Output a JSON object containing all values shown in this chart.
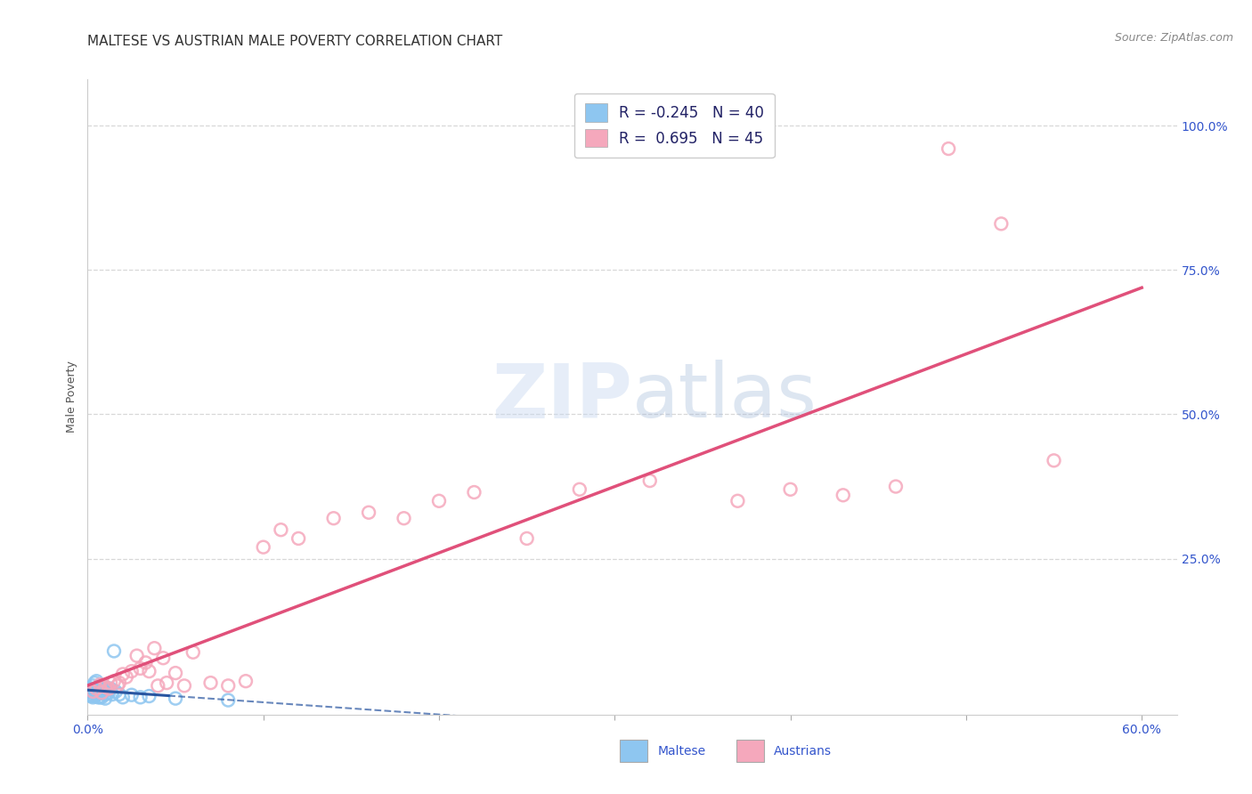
{
  "title": "MALTESE VS AUSTRIAN MALE POVERTY CORRELATION CHART",
  "source": "Source: ZipAtlas.com",
  "ylabel": "Male Poverty",
  "xlim": [
    0.0,
    0.62
  ],
  "ylim": [
    -0.02,
    1.08
  ],
  "xtick_positions": [
    0.0,
    0.1,
    0.2,
    0.3,
    0.4,
    0.5,
    0.6
  ],
  "xtick_labels": [
    "0.0%",
    "",
    "",
    "",
    "",
    "",
    "60.0%"
  ],
  "ytick_right_positions": [
    0.25,
    0.5,
    0.75,
    1.0
  ],
  "ytick_right_labels": [
    "25.0%",
    "50.0%",
    "75.0%",
    "100.0%"
  ],
  "maltese_color": "#8ec6f0",
  "austrian_color": "#f5a8bc",
  "maltese_line_color": "#2855a0",
  "austrian_line_color": "#e0507a",
  "legend_R_maltese": "-0.245",
  "legend_N_maltese": "40",
  "legend_R_austrian": " 0.695",
  "legend_N_austrian": "45",
  "maltese_x": [
    0.001,
    0.001,
    0.002,
    0.002,
    0.003,
    0.003,
    0.003,
    0.004,
    0.004,
    0.004,
    0.005,
    0.005,
    0.005,
    0.006,
    0.006,
    0.006,
    0.007,
    0.007,
    0.007,
    0.008,
    0.008,
    0.008,
    0.009,
    0.009,
    0.01,
    0.01,
    0.01,
    0.011,
    0.012,
    0.013,
    0.014,
    0.015,
    0.016,
    0.018,
    0.02,
    0.025,
    0.03,
    0.035,
    0.05,
    0.08
  ],
  "maltese_y": [
    0.02,
    0.015,
    0.025,
    0.012,
    0.03,
    0.018,
    0.01,
    0.035,
    0.02,
    0.012,
    0.038,
    0.022,
    0.015,
    0.028,
    0.016,
    0.01,
    0.025,
    0.018,
    0.01,
    0.028,
    0.018,
    0.01,
    0.03,
    0.02,
    0.025,
    0.015,
    0.008,
    0.022,
    0.018,
    0.025,
    0.015,
    0.09,
    0.02,
    0.015,
    0.01,
    0.014,
    0.01,
    0.012,
    0.008,
    0.005
  ],
  "austrian_x": [
    0.003,
    0.005,
    0.007,
    0.008,
    0.01,
    0.012,
    0.013,
    0.015,
    0.017,
    0.018,
    0.02,
    0.022,
    0.025,
    0.028,
    0.03,
    0.033,
    0.035,
    0.038,
    0.04,
    0.043,
    0.045,
    0.05,
    0.055,
    0.06,
    0.07,
    0.08,
    0.09,
    0.1,
    0.11,
    0.12,
    0.14,
    0.16,
    0.18,
    0.2,
    0.22,
    0.25,
    0.28,
    0.32,
    0.37,
    0.4,
    0.43,
    0.46,
    0.49,
    0.52,
    0.55
  ],
  "austrian_y": [
    0.02,
    0.025,
    0.032,
    0.018,
    0.028,
    0.025,
    0.035,
    0.038,
    0.03,
    0.035,
    0.05,
    0.045,
    0.055,
    0.082,
    0.06,
    0.07,
    0.055,
    0.095,
    0.03,
    0.078,
    0.035,
    0.052,
    0.03,
    0.088,
    0.035,
    0.03,
    0.038,
    0.27,
    0.3,
    0.285,
    0.32,
    0.33,
    0.32,
    0.35,
    0.365,
    0.285,
    0.37,
    0.385,
    0.35,
    0.37,
    0.36,
    0.375,
    0.96,
    0.83,
    0.42
  ],
  "grid_color": "#d8d8d8",
  "bg_color": "#ffffff",
  "title_fontsize": 11,
  "tick_fontsize": 10,
  "legend_fontsize": 12
}
